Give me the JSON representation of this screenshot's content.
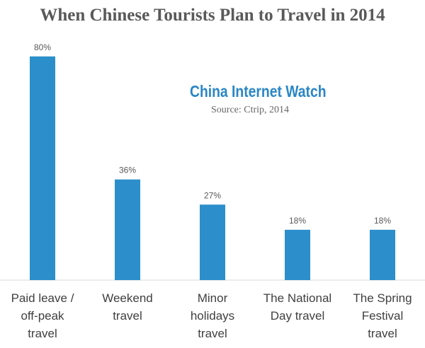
{
  "chart_data": {
    "type": "bar",
    "title": "When Chinese Tourists Plan to Travel in 2014",
    "categories": [
      [
        "Paid leave /",
        "off-peak",
        "travel"
      ],
      [
        "Weekend",
        "travel"
      ],
      [
        "Minor",
        "holidays",
        "travel"
      ],
      [
        "The National",
        "Day travel"
      ],
      [
        "The Spring",
        "Festival",
        "travel"
      ]
    ],
    "values": [
      80,
      36,
      27,
      18,
      18
    ],
    "value_labels": [
      "80%",
      "36%",
      "27%",
      "18%",
      "18%"
    ],
    "ylim": [
      0,
      85
    ],
    "grid": false,
    "bar_color": "#2C8FCB",
    "axis_color": "#D9D9D9"
  },
  "watermark": {
    "text": "China Internet Watch",
    "color": "#2A86C6"
  },
  "source": "Source: Ctrip, 2014"
}
